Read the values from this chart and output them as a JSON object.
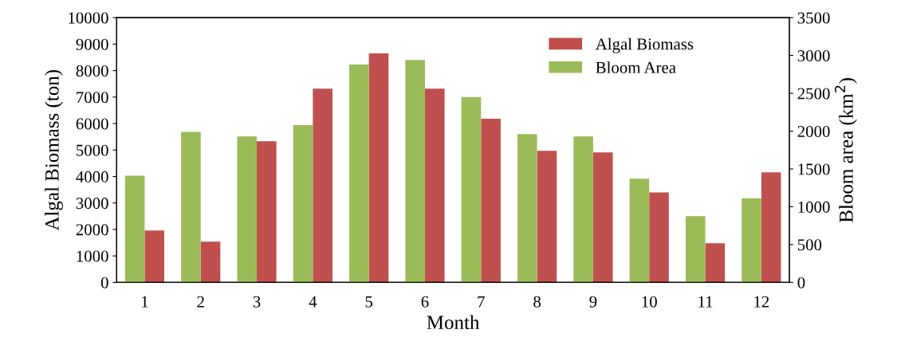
{
  "chart_data": {
    "type": "bar",
    "xlabel": "Month",
    "ylabel": "Algal Biomass (ton)",
    "y2label": "Bloom area (km$^{2}$)",
    "categories": [
      "1",
      "2",
      "3",
      "4",
      "5",
      "6",
      "7",
      "8",
      "9",
      "10",
      "11",
      "12"
    ],
    "series": [
      {
        "name": "Bloom Area",
        "color": "#9bbb59",
        "axis": "y2",
        "values": [
          1410,
          1990,
          1930,
          2080,
          2880,
          2940,
          2450,
          1960,
          1930,
          1370,
          875,
          1110
        ]
      },
      {
        "name": "Algal Biomass",
        "color": "#c0504d",
        "values": [
          1960,
          1540,
          5330,
          7320,
          8650,
          7320,
          6180,
          4970,
          4910,
          3400,
          1480,
          4160
        ]
      }
    ],
    "ylim": [
      0,
      10000
    ],
    "yticks": [
      0,
      1000,
      2000,
      3000,
      4000,
      5000,
      6000,
      7000,
      8000,
      9000,
      10000
    ],
    "y2lim": [
      0,
      3500
    ],
    "y2ticks": [
      0,
      500,
      1000,
      1500,
      2000,
      2500,
      3000,
      3500
    ],
    "grid": false,
    "legend": "top right"
  }
}
